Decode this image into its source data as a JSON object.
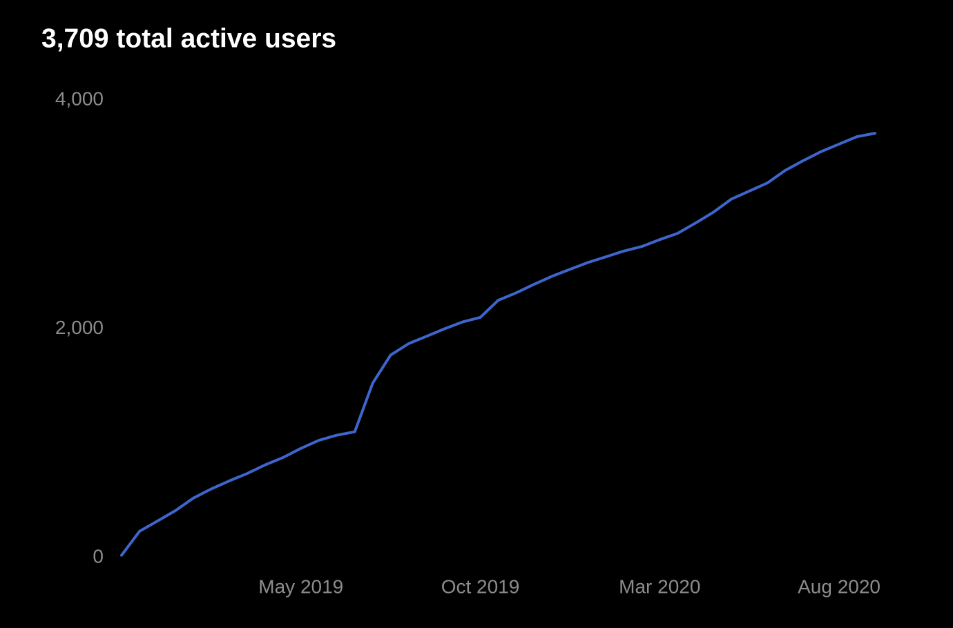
{
  "chart_data": {
    "type": "line",
    "title": "3,709 total active users",
    "categories": [
      null,
      null,
      null,
      null,
      null,
      null,
      null,
      null,
      null,
      null,
      "May 2019",
      null,
      null,
      null,
      null,
      null,
      null,
      null,
      null,
      null,
      "Oct 2019",
      null,
      null,
      null,
      null,
      null,
      null,
      null,
      null,
      null,
      "Mar 2020",
      null,
      null,
      null,
      null,
      null,
      null,
      null,
      null,
      null,
      "Aug 2020",
      null,
      null
    ],
    "series": [
      {
        "color": "#3d66cc",
        "values": [
          20,
          230,
          320,
          410,
          520,
          600,
          670,
          735,
          810,
          875,
          955,
          1025,
          1070,
          1100,
          1525,
          1770,
          1870,
          1935,
          2000,
          2060,
          2100,
          2250,
          2315,
          2390,
          2460,
          2520,
          2580,
          2630,
          2680,
          2720,
          2780,
          2835,
          2925,
          3020,
          3135,
          3205,
          3275,
          3385,
          3470,
          3550,
          3615,
          3680,
          3710
        ]
      }
    ],
    "ylim": [
      0,
      4000
    ],
    "yticks": [
      0,
      {
        "value": 2000,
        "label": "2,000"
      },
      {
        "value": 4000,
        "label": "4,000"
      }
    ],
    "grid": false
  }
}
